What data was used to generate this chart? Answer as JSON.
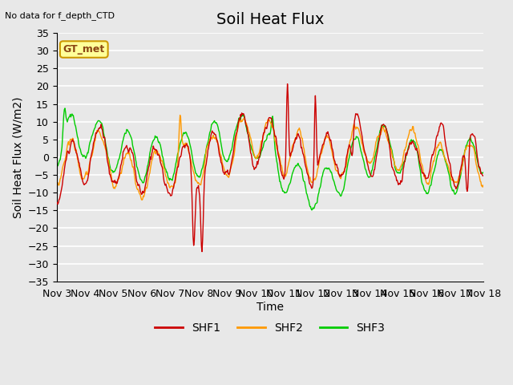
{
  "title": "Soil Heat Flux",
  "top_left_text": "No data for f_depth_CTD",
  "box_label": "GT_met",
  "ylabel": "Soil Heat Flux (W/m2)",
  "xlabel": "Time",
  "ylim": [
    -35,
    35
  ],
  "yticks": [
    -35,
    -30,
    -25,
    -20,
    -15,
    -10,
    -5,
    0,
    5,
    10,
    15,
    20,
    25,
    30,
    35
  ],
  "xtick_positions": [
    0,
    1,
    2,
    3,
    4,
    5,
    6,
    7,
    8,
    9,
    10,
    11,
    12,
    13,
    14,
    15
  ],
  "xtick_labels": [
    "Nov 3",
    "Nov 4",
    "Nov 5",
    "Nov 6",
    "Nov 7",
    "Nov 8",
    "Nov 9",
    "Nov 10",
    "Nov 11",
    "Nov 12",
    "Nov 13",
    "Nov 14",
    "Nov 15",
    "Nov 16",
    "Nov 17",
    "Nov 18"
  ],
  "series_colors": [
    "#cc0000",
    "#ff9900",
    "#00cc00"
  ],
  "series_names": [
    "SHF1",
    "SHF2",
    "SHF3"
  ],
  "plot_bg_color": "#e8e8e8",
  "grid_color": "#ffffff",
  "title_fontsize": 14,
  "axis_label_fontsize": 10,
  "tick_fontsize": 9
}
